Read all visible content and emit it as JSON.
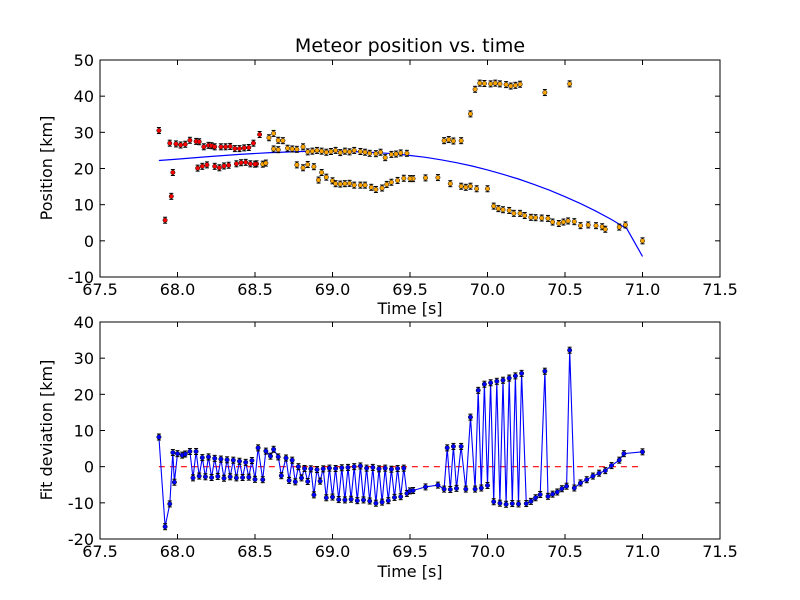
{
  "chart_data": [
    {
      "type": "scatter",
      "title": "Meteor position vs. time",
      "xlabel": "Time [s]",
      "ylabel": "Position [km]",
      "xlim": [
        67.5,
        71.5
      ],
      "ylim": [
        -10,
        50
      ],
      "xticks": [
        "67.5",
        "68.0",
        "68.5",
        "69.0",
        "69.5",
        "70.0",
        "70.5",
        "71.0",
        "71.5"
      ],
      "yticks": [
        "-10",
        "0",
        "10",
        "20",
        "30",
        "40",
        "50"
      ],
      "grid": false,
      "colors": {
        "series_a": "#ff0000",
        "series_b": "#ffa500",
        "fit": "#0000ff"
      },
      "series": [
        {
          "marker": "point",
          "color": "#ff0000",
          "x": [
            67.88,
            67.92,
            67.95,
            67.96,
            67.99,
            68.02,
            68.05,
            68.08,
            68.12,
            68.14,
            68.17,
            68.2,
            68.22,
            68.24,
            68.28,
            68.31,
            68.34,
            68.37,
            68.4,
            68.43,
            68.46,
            68.49,
            68.51,
            68.53
          ],
          "y": [
            30.5,
            5.7,
            27,
            12.3,
            26.8,
            26.5,
            26.7,
            27.8,
            27.5,
            27.4,
            26,
            26.4,
            26.3,
            26,
            26,
            26,
            26.1,
            25.5,
            25.5,
            25.7,
            25.8,
            27,
            21.3,
            29.4
          ]
        },
        {
          "marker": "point",
          "color": "#ff0000",
          "x": [
            67.97,
            68.13,
            68.16,
            68.19,
            68.24,
            68.27,
            68.3,
            68.33,
            68.38,
            68.41,
            68.44,
            68.47,
            68.5
          ],
          "y": [
            18.9,
            20.1,
            20.6,
            21,
            20.6,
            20.2,
            20.7,
            20.9,
            21.3,
            21.6,
            21.7,
            21.3,
            21.2
          ]
        },
        {
          "marker": "point",
          "color": "#ffa500",
          "x": [
            68.55,
            68.59,
            68.62,
            68.65,
            68.68,
            68.71,
            68.74,
            68.77,
            68.81,
            68.84,
            68.87,
            68.9,
            68.93,
            68.96,
            68.99,
            69.02,
            69.05,
            69.08,
            69.11,
            69.14,
            69.18,
            69.21,
            69.24,
            69.28,
            69.31,
            69.34,
            69.38,
            69.41,
            69.44,
            69.48,
            69.52,
            69.72,
            69.75,
            69.78,
            69.83,
            69.89,
            69.92,
            69.95,
            69.98,
            70.02,
            70.05,
            70.08,
            70.12,
            70.15,
            70.18,
            70.21,
            70.37,
            70.53
          ],
          "y": [
            21.2,
            28.5,
            29.7,
            27.8,
            27.7,
            25.6,
            25.4,
            25.3,
            26,
            24.6,
            24.8,
            25,
            24.8,
            24.5,
            24.7,
            25,
            24.4,
            24.8,
            24.6,
            25,
            24.7,
            24.5,
            24.2,
            24.1,
            24.5,
            23,
            23.9,
            24,
            24.3,
            24.2,
            17.2,
            27.7,
            28,
            27.6,
            27.7,
            35.1,
            41.9,
            43.6,
            43.5,
            43.4,
            43.6,
            43.4,
            43.2,
            42.8,
            43,
            43.3,
            41,
            43.4
          ]
        },
        {
          "marker": "point",
          "color": "#ffa500",
          "x": [
            68.57,
            68.62,
            68.65,
            68.77,
            68.81,
            68.84,
            68.88,
            68.91,
            68.93,
            68.96,
            69.0,
            69.02,
            69.05,
            69.08,
            69.11,
            69.14,
            69.18,
            69.21,
            69.25,
            69.28,
            69.32,
            69.35,
            69.38,
            69.42,
            69.46,
            69.5,
            69.6,
            69.68,
            69.76,
            69.83,
            69.86,
            69.89,
            69.93,
            70.0,
            70.04,
            70.07,
            70.1,
            70.14,
            70.17,
            70.21,
            70.24,
            70.28,
            70.31,
            70.35,
            70.39,
            70.42,
            70.46,
            70.49,
            70.52,
            70.56,
            70.6,
            70.65,
            70.7,
            70.74,
            70.76,
            70.85,
            70.89,
            71.0
          ],
          "y": [
            21.5,
            25.4,
            25.2,
            21,
            20.2,
            21.1,
            20.5,
            16.8,
            18.9,
            17.6,
            16.6,
            15.8,
            15.7,
            15.8,
            15.9,
            15.4,
            15.4,
            15.4,
            14.8,
            14.2,
            14.6,
            15.6,
            16.2,
            16.7,
            17.3,
            17.2,
            17.4,
            17.5,
            15.8,
            15.1,
            14.8,
            15.1,
            14.4,
            14.4,
            9.6,
            8.9,
            8.6,
            8.4,
            7.6,
            7.6,
            7,
            6.5,
            6.4,
            6.3,
            6.2,
            5.2,
            4.8,
            5.2,
            5.5,
            5.3,
            4.2,
            4.4,
            4.2,
            3.9,
            3.2,
            3.8,
            4.4,
            0
          ]
        }
      ],
      "fit_curve": {
        "color": "#0000ff",
        "x": [
          67.88,
          68.0,
          68.2,
          68.4,
          68.6,
          68.8,
          69.0,
          69.2,
          69.4,
          69.5,
          69.6,
          69.7,
          69.8,
          69.9,
          70.0,
          70.1,
          70.2,
          70.3,
          70.4,
          70.5,
          70.6,
          70.7,
          70.8,
          70.9,
          71.0
        ],
        "y": [
          22.2,
          22.6,
          23.3,
          23.9,
          24.4,
          24.7,
          24.8,
          24.6,
          24.1,
          23.6,
          23.1,
          22.4,
          21.6,
          20.7,
          19.6,
          18.4,
          17.1,
          15.6,
          14,
          12.2,
          10.3,
          8.2,
          5.9,
          3.3,
          -4.3
        ]
      }
    },
    {
      "type": "line",
      "title": "",
      "xlabel": "Time [s]",
      "ylabel": "Fit deviation [km]",
      "xlim": [
        67.5,
        71.5
      ],
      "ylim": [
        -20,
        40
      ],
      "xticks": [
        "67.5",
        "68.0",
        "68.5",
        "69.0",
        "69.5",
        "70.0",
        "70.5",
        "71.0",
        "71.5"
      ],
      "yticks": [
        "-20",
        "-10",
        "0",
        "10",
        "20",
        "30",
        "40"
      ],
      "grid": false,
      "colors": {
        "line": "#0000ff",
        "zero_line": "#ff0000"
      },
      "zero_line": {
        "x": [
          67.88,
          71.0
        ],
        "y": [
          0,
          0
        ]
      },
      "series": [
        {
          "color": "#0000ff",
          "x": [
            67.88,
            67.92,
            67.95,
            67.97,
            67.98,
            68.0,
            68.03,
            68.05,
            68.08,
            68.1,
            68.12,
            68.14,
            68.16,
            68.18,
            68.2,
            68.22,
            68.24,
            68.26,
            68.28,
            68.3,
            68.32,
            68.34,
            68.36,
            68.38,
            68.4,
            68.42,
            68.44,
            68.46,
            68.48,
            68.5,
            68.52,
            68.55,
            68.57,
            68.6,
            68.62,
            68.65,
            68.67,
            68.7,
            68.72,
            68.74,
            68.76,
            68.78,
            68.8,
            68.82,
            68.84,
            68.86,
            68.88,
            68.9,
            68.92,
            68.94,
            68.96,
            68.98,
            69.0,
            69.02,
            69.04,
            69.06,
            69.08,
            69.1,
            69.12,
            69.14,
            69.16,
            69.18,
            69.2,
            69.22,
            69.24,
            69.26,
            69.28,
            69.3,
            69.32,
            69.34,
            69.36,
            69.38,
            69.4,
            69.42,
            69.44,
            69.46,
            69.48,
            69.5,
            69.52,
            69.6,
            69.68,
            69.72,
            69.74,
            69.76,
            69.78,
            69.8,
            69.83,
            69.86,
            69.89,
            69.92,
            69.94,
            69.96,
            69.98,
            70.0,
            70.02,
            70.04,
            70.06,
            70.08,
            70.1,
            70.12,
            70.14,
            70.16,
            70.18,
            70.2,
            70.22,
            70.25,
            70.28,
            70.31,
            70.34,
            70.37,
            70.39,
            70.42,
            70.45,
            70.48,
            70.51,
            70.53,
            70.56,
            70.6,
            70.64,
            70.68,
            70.72,
            70.76,
            70.8,
            70.85,
            70.88,
            71.0
          ],
          "y": [
            8.2,
            -16.6,
            -10.3,
            3.9,
            -4.3,
            3.6,
            3.2,
            3.5,
            4.2,
            -3.1,
            4.2,
            -2.6,
            2.5,
            -2.8,
            2.7,
            -3,
            2.3,
            -2.7,
            2.1,
            -3.2,
            1.9,
            -2.8,
            1.8,
            -3.1,
            1.5,
            -3,
            1.2,
            -2.9,
            1.7,
            -3.5,
            5.2,
            -3.6,
            4.3,
            2.9,
            4.8,
            2.7,
            -2.5,
            2.4,
            -3.8,
            1.8,
            -4.2,
            0,
            -3.1,
            -0.5,
            -4.1,
            -0.6,
            -7.8,
            -0.8,
            -4,
            -0.6,
            -8.6,
            -0.4,
            -8.4,
            -0.5,
            -9.1,
            -0.3,
            -9.2,
            -0.2,
            -9,
            0,
            -9.4,
            0.2,
            -9.2,
            -0.4,
            -9.5,
            -0.2,
            -10.1,
            -0.6,
            -9.8,
            -0.4,
            -9.4,
            -0.7,
            -8.5,
            -0.5,
            -8.3,
            -0.4,
            -7.4,
            -6.7,
            -6.6,
            -5.6,
            -5.1,
            -6.2,
            5.2,
            -6.3,
            5.6,
            -6,
            5.6,
            -6.2,
            13.7,
            -6.2,
            21.1,
            -5.9,
            22.8,
            -5.2,
            23.2,
            -9.7,
            23.6,
            -10.1,
            23.9,
            -10.4,
            24.5,
            -10.2,
            25.1,
            -10.3,
            25.8,
            -10.2,
            -9.6,
            -8.6,
            -7.7,
            26.4,
            -8.2,
            -7.6,
            -7,
            -6.1,
            -5.4,
            32.2,
            -5.9,
            -4.5,
            -3.6,
            -2.6,
            -1.8,
            -1.1,
            0.3,
            1.8,
            3.6,
            4.1
          ]
        }
      ]
    }
  ]
}
